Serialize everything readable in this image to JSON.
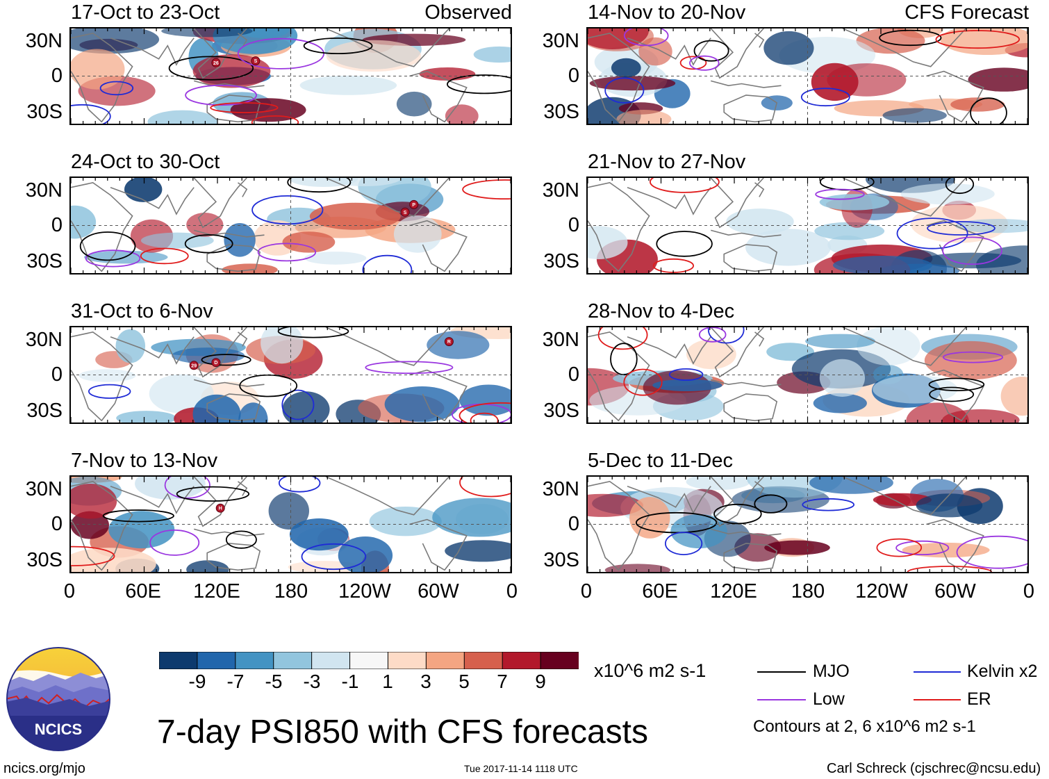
{
  "panels_observed": [
    {
      "title": "17-Oct to 23-Oct",
      "tag": "Observed"
    },
    {
      "title": "24-Oct to 30-Oct",
      "tag": ""
    },
    {
      "title": "31-Oct to 6-Nov",
      "tag": ""
    },
    {
      "title": "7-Nov to 13-Nov",
      "tag": ""
    }
  ],
  "panels_forecast": [
    {
      "title": "14-Nov to 20-Nov",
      "tag": "CFS Forecast"
    },
    {
      "title": "21-Nov to 27-Nov",
      "tag": ""
    },
    {
      "title": "28-Nov to 4-Dec",
      "tag": ""
    },
    {
      "title": "5-Dec to 11-Dec",
      "tag": ""
    }
  ],
  "lat_labels": [
    "30N",
    "0",
    "30S"
  ],
  "lon_labels": [
    "0",
    "60E",
    "120E",
    "180",
    "120W",
    "60W",
    "0"
  ],
  "colorbar": {
    "unit": "x10^6 m2 s-1",
    "ticks": [
      "-9",
      "-7",
      "-5",
      "-3",
      "-1",
      "1",
      "3",
      "5",
      "7",
      "9"
    ],
    "colors": [
      "#0d3a6e",
      "#2166ac",
      "#4393c3",
      "#92c5de",
      "#d1e5f0",
      "#f7f7f7",
      "#fddbc7",
      "#f4a582",
      "#d6604d",
      "#b2182b",
      "#67001f"
    ]
  },
  "legend": {
    "mjo": "MJO",
    "kelvin": "Kelvin x2",
    "low": "Low",
    "er": "ER",
    "note": "Contours at 2, 6 x10^6 m2 s-1",
    "colors": {
      "mjo": "#000000",
      "kelvin": "#1f2bd6",
      "low": "#9a36e0",
      "er": "#e01b1b"
    }
  },
  "main_title": "7-day PSI850 with CFS forecasts",
  "logo_text": "NCICS",
  "footer": {
    "url": "ncics.org/mjo",
    "timestamp": "Tue 2017-11-14 1118 UTC",
    "credit": "Carl Schreck (cjschrec@ncsu.edu)"
  },
  "storm_markers": {
    "p1": [
      "26",
      "S"
    ],
    "p2": [
      "P",
      "S"
    ],
    "p3": [
      "29",
      "D",
      "R"
    ],
    "p4": [
      "H"
    ]
  }
}
